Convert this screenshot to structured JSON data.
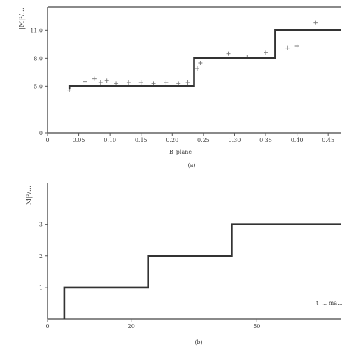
{
  "chart_data": [
    {
      "panel": "top",
      "type": "line",
      "ylabel": "|M|²/…",
      "xlabel": "B_plane",
      "caption": "(a)",
      "xlim": [
        0,
        0.47
      ],
      "ylim": [
        0,
        13.5
      ],
      "x_ticks": [
        "0",
        "0.05",
        "0.10",
        "0.15",
        "0.20",
        "0.25",
        "0.30",
        "0.35",
        "0.40",
        "0.45"
      ],
      "y_ticks": [
        "0",
        "5.0",
        "8.0",
        "11.0"
      ],
      "series": [
        {
          "kind": "step",
          "points": [
            [
              0.035,
              4.7
            ],
            [
              0.035,
              5.0
            ],
            [
              0.235,
              5.0
            ],
            [
              0.235,
              8.0
            ],
            [
              0.365,
              8.0
            ],
            [
              0.365,
              11.0
            ],
            [
              0.47,
              11.0
            ]
          ]
        },
        {
          "kind": "scatter",
          "points": [
            [
              0.035,
              4.6
            ],
            [
              0.06,
              5.5
            ],
            [
              0.075,
              5.8
            ],
            [
              0.085,
              5.4
            ],
            [
              0.095,
              5.6
            ],
            [
              0.11,
              5.3
            ],
            [
              0.13,
              5.4
            ],
            [
              0.15,
              5.4
            ],
            [
              0.17,
              5.3
            ],
            [
              0.19,
              5.4
            ],
            [
              0.21,
              5.3
            ],
            [
              0.225,
              5.4
            ],
            [
              0.24,
              6.9
            ],
            [
              0.245,
              7.5
            ],
            [
              0.29,
              8.5
            ],
            [
              0.32,
              8.1
            ],
            [
              0.35,
              8.6
            ],
            [
              0.385,
              9.1
            ],
            [
              0.4,
              9.3
            ],
            [
              0.43,
              11.8
            ]
          ]
        }
      ]
    },
    {
      "panel": "bottom",
      "type": "line",
      "ylabel": "|M|²/…",
      "caption": "(b)",
      "xlim": [
        0,
        70
      ],
      "ylim": [
        0,
        4.3
      ],
      "x_ticks": [
        "0",
        "20",
        "50"
      ],
      "y_ticks": [
        "1",
        "2",
        "3"
      ],
      "annotation": "t_… ma…",
      "series": [
        {
          "kind": "step",
          "points": [
            [
              4,
              0
            ],
            [
              4,
              1
            ],
            [
              24,
              1
            ],
            [
              24,
              2
            ],
            [
              44,
              2
            ],
            [
              44,
              3
            ],
            [
              70,
              3
            ]
          ]
        }
      ]
    }
  ]
}
